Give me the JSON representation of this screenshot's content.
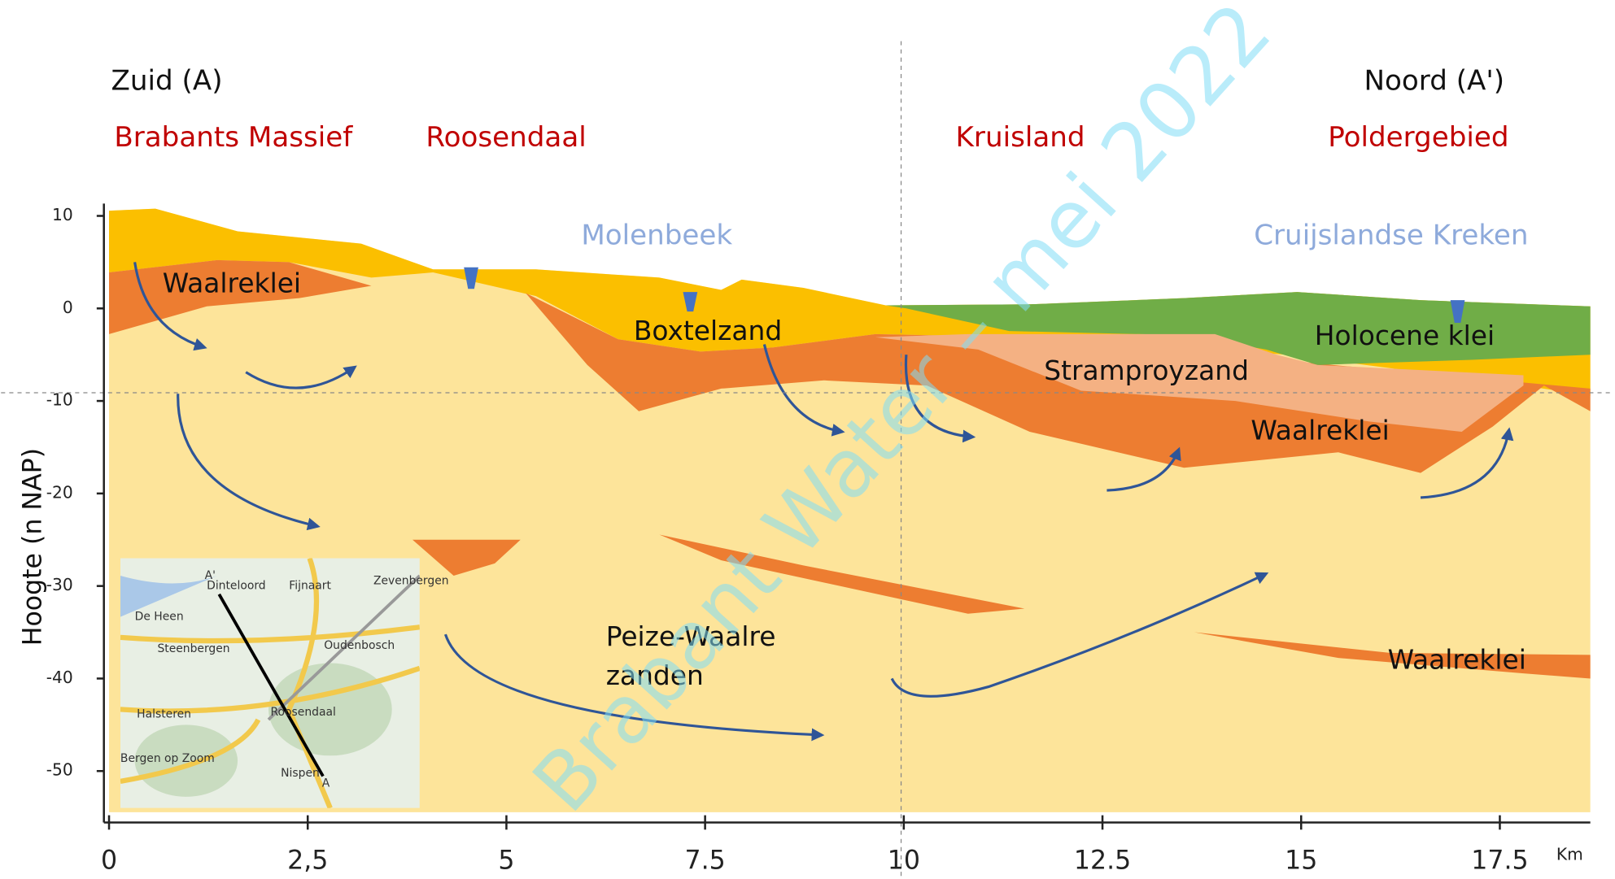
{
  "header": {
    "left": "Zuid (A)",
    "right": "Noord (A')"
  },
  "regions": [
    "Brabants Massief",
    "Roosendaal",
    "Kruisland",
    "Poldergebied"
  ],
  "streams": [
    "Molenbeek",
    "Cruijslandse Kreken"
  ],
  "layers": [
    "Waalreklei",
    "Boxtelzand",
    "Holocene klei",
    "Stramproyzand",
    "Waalreklei",
    "Peize-Waalre zanden",
    "Waalreklei"
  ],
  "axis": {
    "ylabel": "Hoogte (n NAP)",
    "xunit": "Km",
    "xlim": [
      0,
      18.6
    ],
    "ylim": [
      -55.5,
      11
    ],
    "yticks": [
      10,
      0,
      -10,
      -20,
      -30,
      -40,
      -50
    ],
    "xticks": [
      0,
      {
        "value": 2.5,
        "label": "2,5"
      },
      5,
      7.5,
      10,
      12.5,
      15,
      17.5
    ]
  },
  "map": {
    "labels": [
      "A'",
      "Dinteloord",
      "Fijnaart",
      "Zevenbergen",
      "De Heen",
      "Steenbergen",
      "Oudenbosch",
      "Halsteren",
      "Roosendaal",
      "Bergen op Zoom",
      "Nispen",
      "A"
    ]
  },
  "watermark": "Brabant Water – mei 2022"
}
